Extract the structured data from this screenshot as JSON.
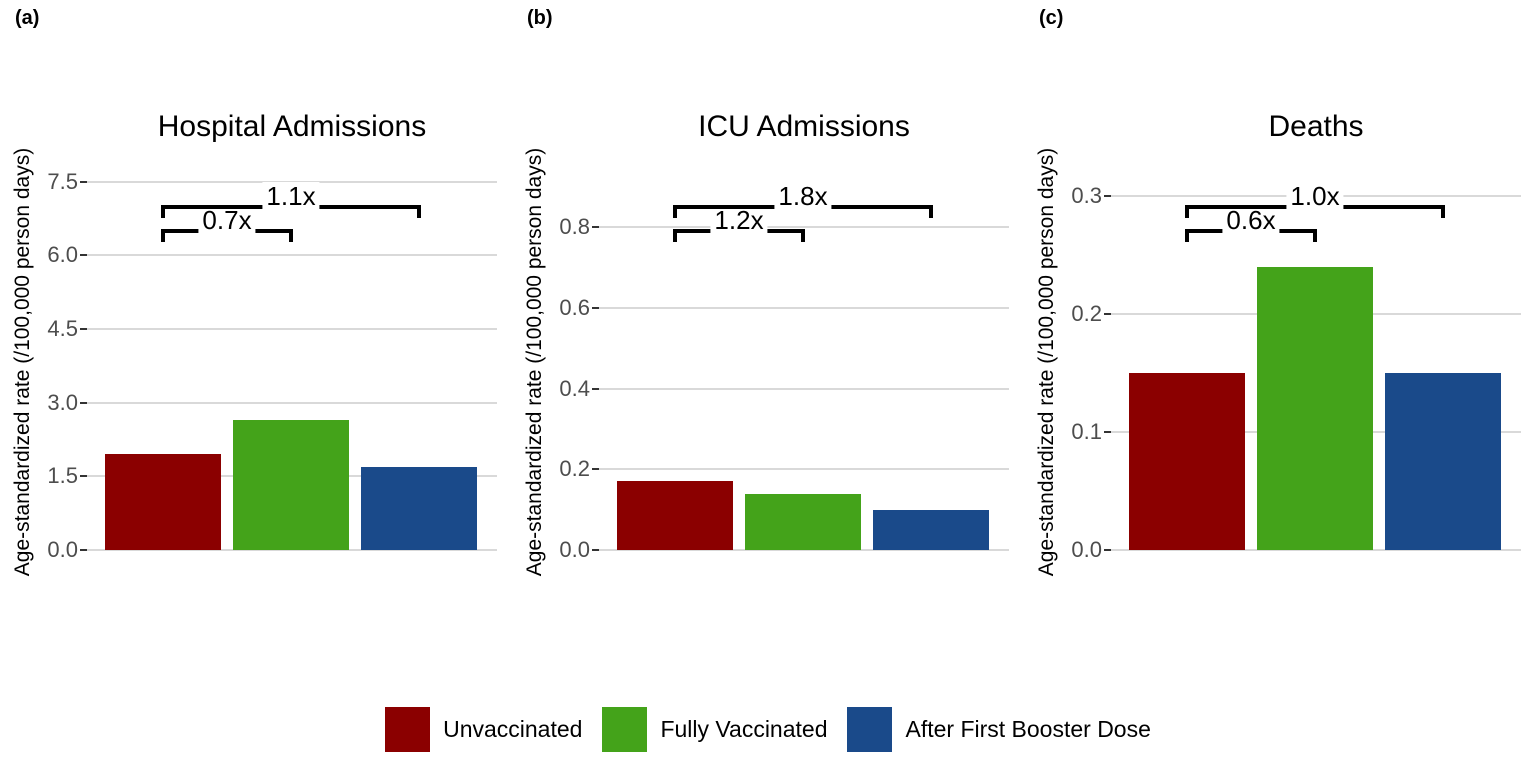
{
  "figure": {
    "background": "#ffffff",
    "gridline_color": "#d9d9d9",
    "tick_color": "#333333",
    "tick_label_color": "#4d4d4d",
    "y_axis_label": "Age-standardized rate (/100,000 person days)"
  },
  "legend": {
    "position": "bottom-center",
    "items": [
      {
        "label": "Unvaccinated",
        "color": "#8b0000"
      },
      {
        "label": "Fully Vaccinated",
        "color": "#44a31a"
      },
      {
        "label": "After First Booster Dose",
        "color": "#1a4a8a"
      }
    ]
  },
  "chart_data": [
    {
      "type": "bar",
      "panel_label": "(a)",
      "title": "Hospital Admissions",
      "ylabel": "Age-standardized rate (/100,000 person days)",
      "categories": [
        "Unvaccinated",
        "Fully Vaccinated",
        "After First Booster Dose"
      ],
      "values": [
        1.95,
        2.65,
        1.7
      ],
      "yticks": [
        0.0,
        1.5,
        3.0,
        4.5,
        6.0,
        7.5
      ],
      "ytick_labels": [
        "0.0",
        "1.5",
        "3.0",
        "4.5",
        "6.0",
        "7.5"
      ],
      "ylim": [
        0,
        7.94
      ],
      "grid": "horizontal-major",
      "legend_position": "bottom",
      "annotations": [
        {
          "label": "0.7x",
          "from_bar": 0,
          "to_bar": 1
        },
        {
          "label": "1.1x",
          "from_bar": 0,
          "to_bar": 2
        }
      ]
    },
    {
      "type": "bar",
      "panel_label": "(b)",
      "title": "ICU Admissions",
      "ylabel": "Age-standardized rate (/100,000 person days)",
      "categories": [
        "Unvaccinated",
        "Fully Vaccinated",
        "After First Booster Dose"
      ],
      "values": [
        0.17,
        0.14,
        0.1
      ],
      "yticks": [
        0.0,
        0.2,
        0.4,
        0.6,
        0.8
      ],
      "ytick_labels": [
        "0.0",
        "0.2",
        "0.4",
        "0.6",
        "0.8"
      ],
      "ylim": [
        0,
        0.966
      ],
      "grid": "horizontal-major",
      "legend_position": "bottom",
      "annotations": [
        {
          "label": "1.2x",
          "from_bar": 0,
          "to_bar": 1
        },
        {
          "label": "1.8x",
          "from_bar": 0,
          "to_bar": 2
        }
      ]
    },
    {
      "type": "bar",
      "panel_label": "(c)",
      "title": "Deaths",
      "ylabel": "Age-standardized rate (/100,000 person days)",
      "categories": [
        "Unvaccinated",
        "Fully Vaccinated",
        "After First Booster Dose"
      ],
      "values": [
        0.15,
        0.24,
        0.15
      ],
      "yticks": [
        0.0,
        0.1,
        0.2,
        0.3
      ],
      "ytick_labels": [
        "0.0",
        "0.1",
        "0.2",
        "0.3"
      ],
      "ylim": [
        0,
        0.3305
      ],
      "grid": "horizontal-major",
      "legend_position": "bottom",
      "annotations": [
        {
          "label": "0.6x",
          "from_bar": 0,
          "to_bar": 1
        },
        {
          "label": "1.0x",
          "from_bar": 0,
          "to_bar": 2
        }
      ]
    }
  ]
}
